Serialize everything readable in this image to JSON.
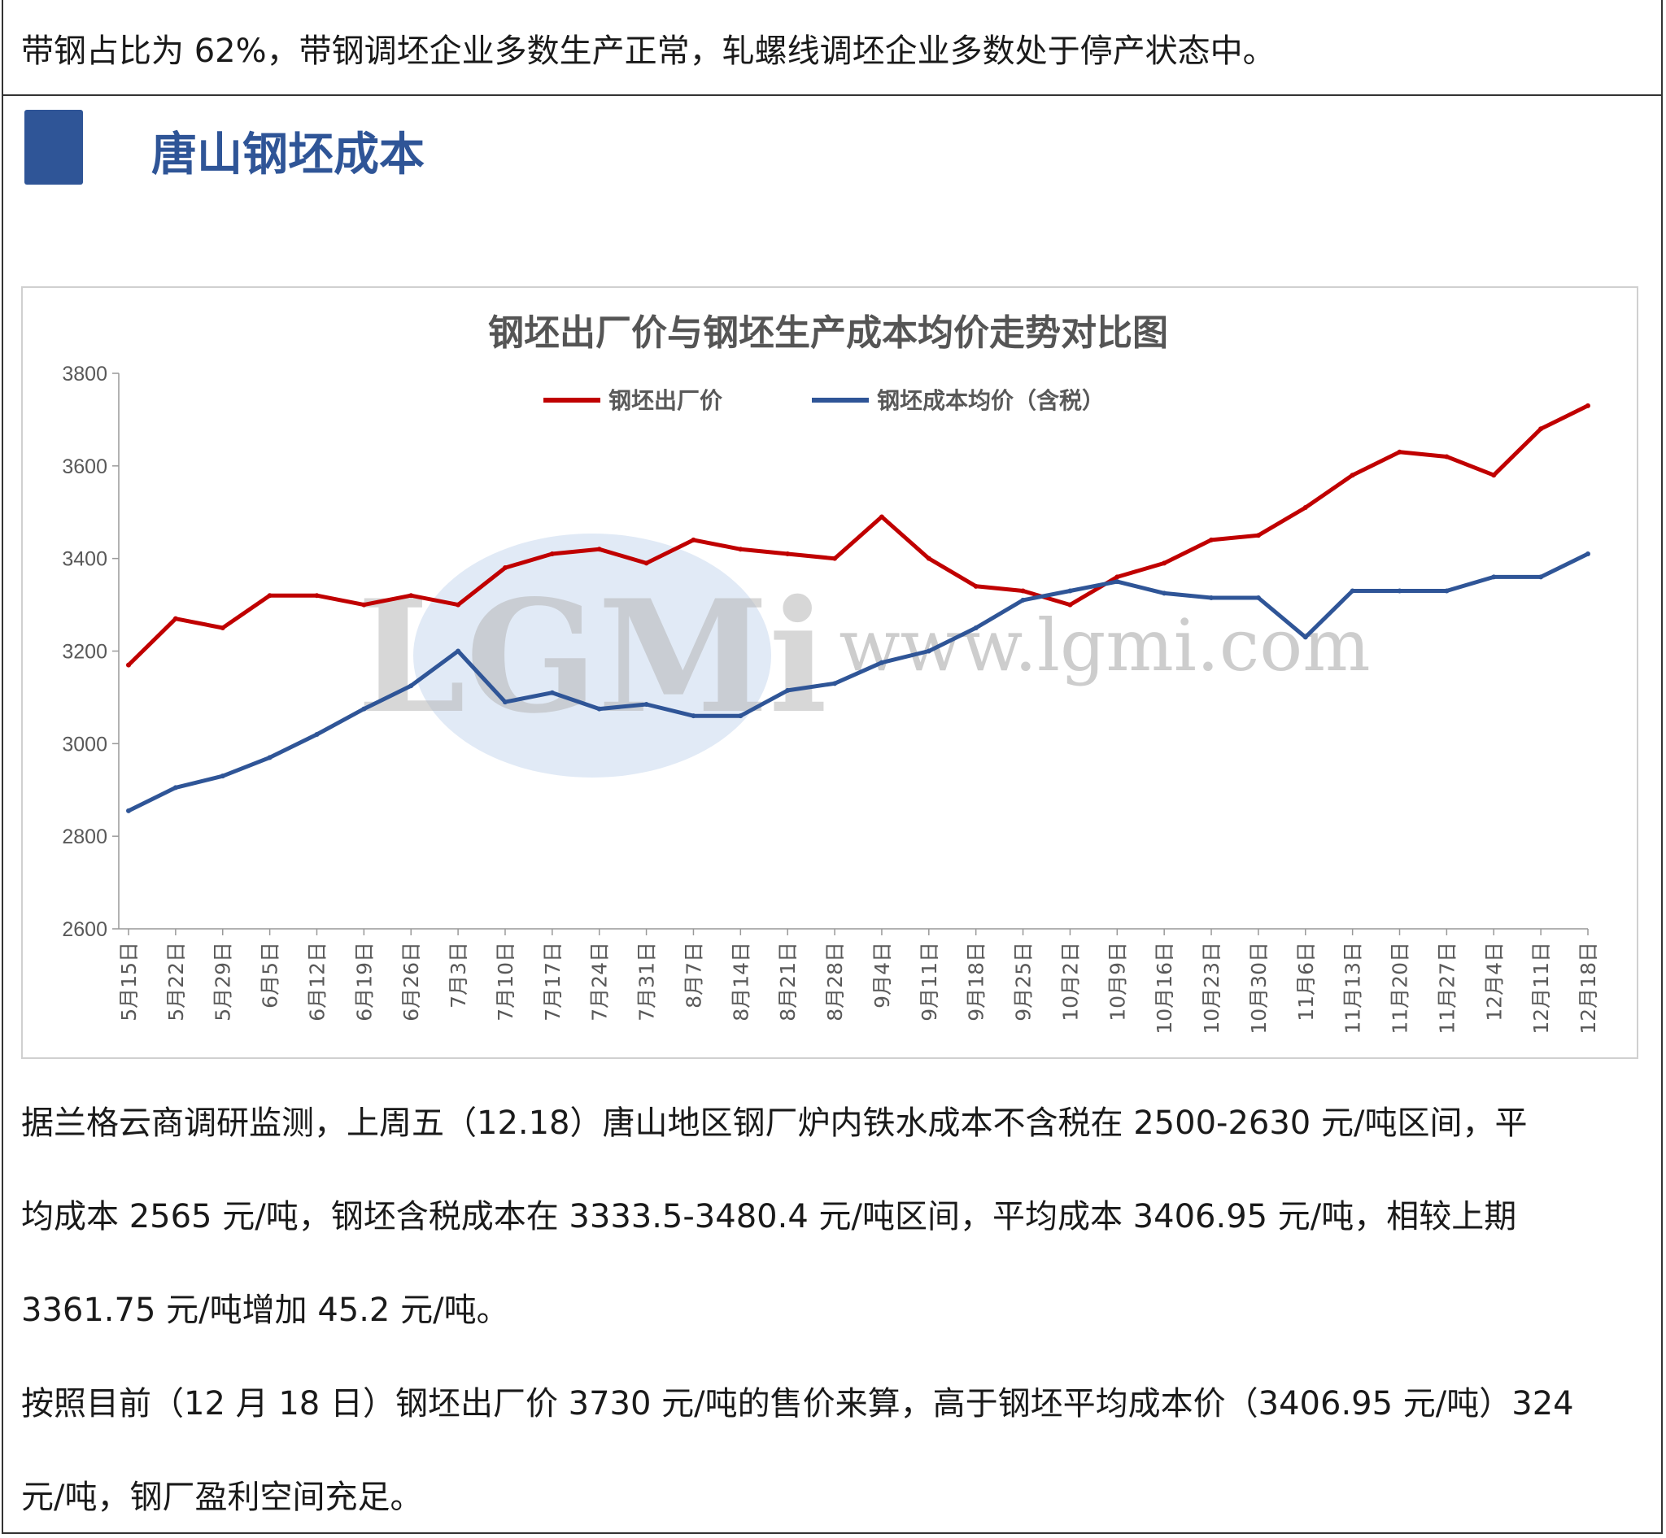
{
  "top_text": "带钢占比为 62%，带钢调坯企业多数生产正常，轧螺线调坯企业多数处于停产状态中。",
  "section": {
    "title": "唐山钢坯成本"
  },
  "chart_data": {
    "type": "line",
    "title": "钢坯出厂价与钢坯生产成本均价走势对比图",
    "watermark_text": "www.lgmi.com",
    "ylim": [
      2600,
      3800
    ],
    "yticks": [
      2600,
      2800,
      3000,
      3200,
      3400,
      3600,
      3800
    ],
    "xlabels": [
      "5月15日",
      "5月22日",
      "5月29日",
      "6月5日",
      "6月12日",
      "6月19日",
      "6月26日",
      "7月3日",
      "7月10日",
      "7月17日",
      "7月24日",
      "7月31日",
      "8月7日",
      "8月14日",
      "8月21日",
      "8月28日",
      "9月4日",
      "9月11日",
      "9月18日",
      "9月25日",
      "10月2日",
      "10月9日",
      "10月16日",
      "10月23日",
      "10月30日",
      "11月6日",
      "11月13日",
      "11月20日",
      "11月27日",
      "12月4日",
      "12月11日",
      "12月18日"
    ],
    "legend_position": "top-center",
    "series": [
      {
        "name": "钢坯出厂价",
        "color": "#c00000",
        "values": [
          3170,
          3270,
          3250,
          3320,
          3320,
          3300,
          3320,
          3300,
          3380,
          3410,
          3420,
          3390,
          3440,
          3420,
          3410,
          3400,
          3490,
          3400,
          3340,
          3330,
          3300,
          3360,
          3390,
          3440,
          3450,
          3510,
          3580,
          3630,
          3620,
          3580,
          3680,
          3730
        ]
      },
      {
        "name": "钢坯成本均价（含税）",
        "color": "#2f5597",
        "values": [
          2855,
          2905,
          2930,
          2970,
          3020,
          3075,
          3125,
          3200,
          3090,
          3110,
          3075,
          3085,
          3060,
          3060,
          3115,
          3130,
          3175,
          3200,
          3250,
          3310,
          3330,
          3350,
          3325,
          3315,
          3315,
          3230,
          3330,
          3330,
          3330,
          3360,
          3360,
          3410
        ]
      }
    ]
  },
  "paragraphs": [
    "据兰格云商调研监测，上周五（12.18）唐山地区钢厂炉内铁水成本不含税在 2500-2630 元/吨区间，平",
    "均成本 2565 元/吨，钢坯含税成本在 3333.5-3480.4 元/吨区间，平均成本 3406.95 元/吨，相较上期",
    "3361.75 元/吨增加 45.2 元/吨。",
    "按照目前（12 月 18 日）钢坯出厂价 3730 元/吨的售价来算，高于钢坯平均成本价（3406.95 元/吨）324",
    "元/吨，钢厂盈利空间充足。"
  ]
}
